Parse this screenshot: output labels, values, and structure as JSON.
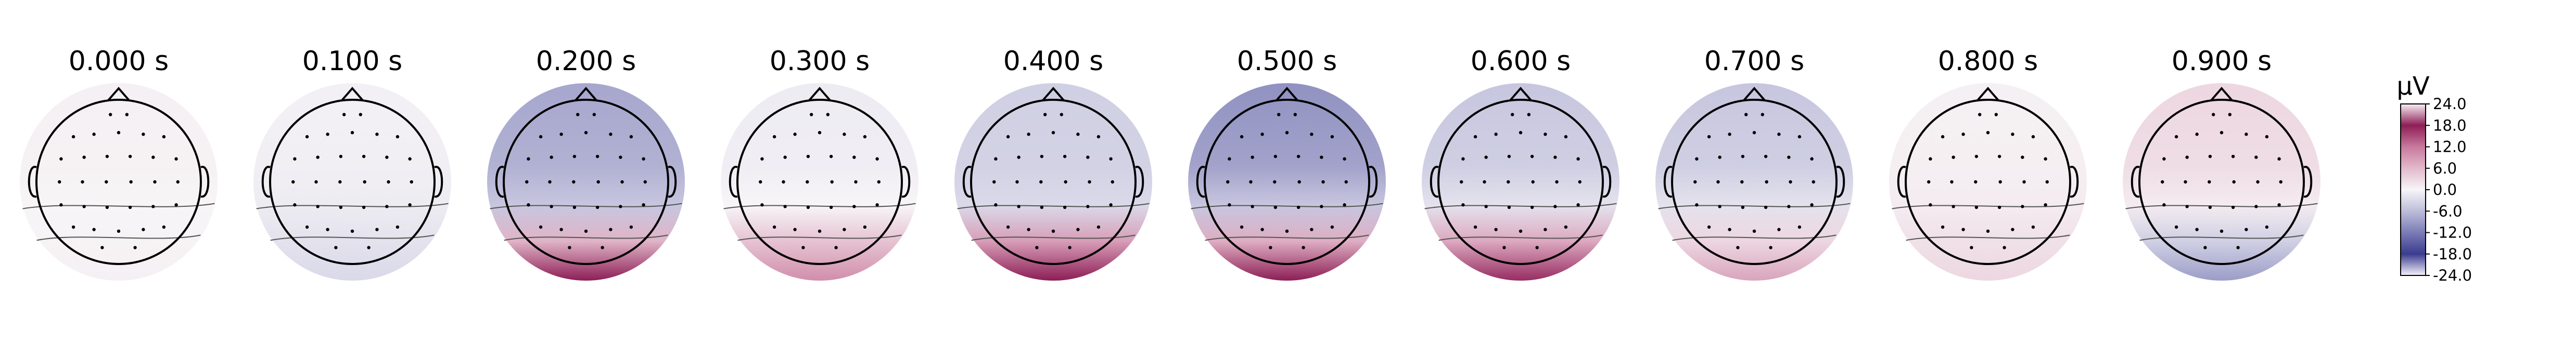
{
  "chart_data": {
    "type": "heatmap",
    "subtype": "eeg-topomap-series",
    "colormap": {
      "name": "purple-white-magenta",
      "stops": [
        {
          "value": -24,
          "color": "#f4f2fb"
        },
        {
          "value": -18,
          "color": "#3b3c8f"
        },
        {
          "value": -12,
          "color": "#7b7cb5"
        },
        {
          "value": -6,
          "color": "#bdbdda"
        },
        {
          "value": 0,
          "color": "#f7f5f7"
        },
        {
          "value": 6,
          "color": "#e2b9cb"
        },
        {
          "value": 12,
          "color": "#c8799d"
        },
        {
          "value": 18,
          "color": "#8d1e56"
        },
        {
          "value": 24,
          "color": "#f7eef3"
        }
      ]
    },
    "colorbar": {
      "unit": "µV",
      "ticks": [
        "24.0",
        "18.0",
        "12.0",
        "6.0",
        "0.0",
        "-6.0",
        "-12.0",
        "-18.0",
        "-24.0"
      ],
      "range": [
        -24,
        24
      ]
    },
    "panels": [
      {
        "title": "0.000 s",
        "front": 0.5,
        "middle": 0.0,
        "back": 0.5
      },
      {
        "title": "0.100 s",
        "front": -0.5,
        "middle": -1.0,
        "back": -3.0
      },
      {
        "title": "0.200 s",
        "front": -8.0,
        "middle": -5.0,
        "back": 18.0
      },
      {
        "title": "0.300 s",
        "front": -1.0,
        "middle": 0.0,
        "back": 10.0
      },
      {
        "title": "0.400 s",
        "front": -4.0,
        "middle": -3.0,
        "back": 20.0
      },
      {
        "title": "0.500 s",
        "front": -10.0,
        "middle": -5.0,
        "back": 19.0
      },
      {
        "title": "0.600 s",
        "front": -5.0,
        "middle": -2.0,
        "back": 17.0
      },
      {
        "title": "0.700 s",
        "front": -5.0,
        "middle": -2.0,
        "back": 8.0
      },
      {
        "title": "0.800 s",
        "front": 0.5,
        "middle": 1.0,
        "back": 3.0
      },
      {
        "title": "0.900 s",
        "front": 3.0,
        "middle": 1.0,
        "back": -9.0
      }
    ]
  }
}
